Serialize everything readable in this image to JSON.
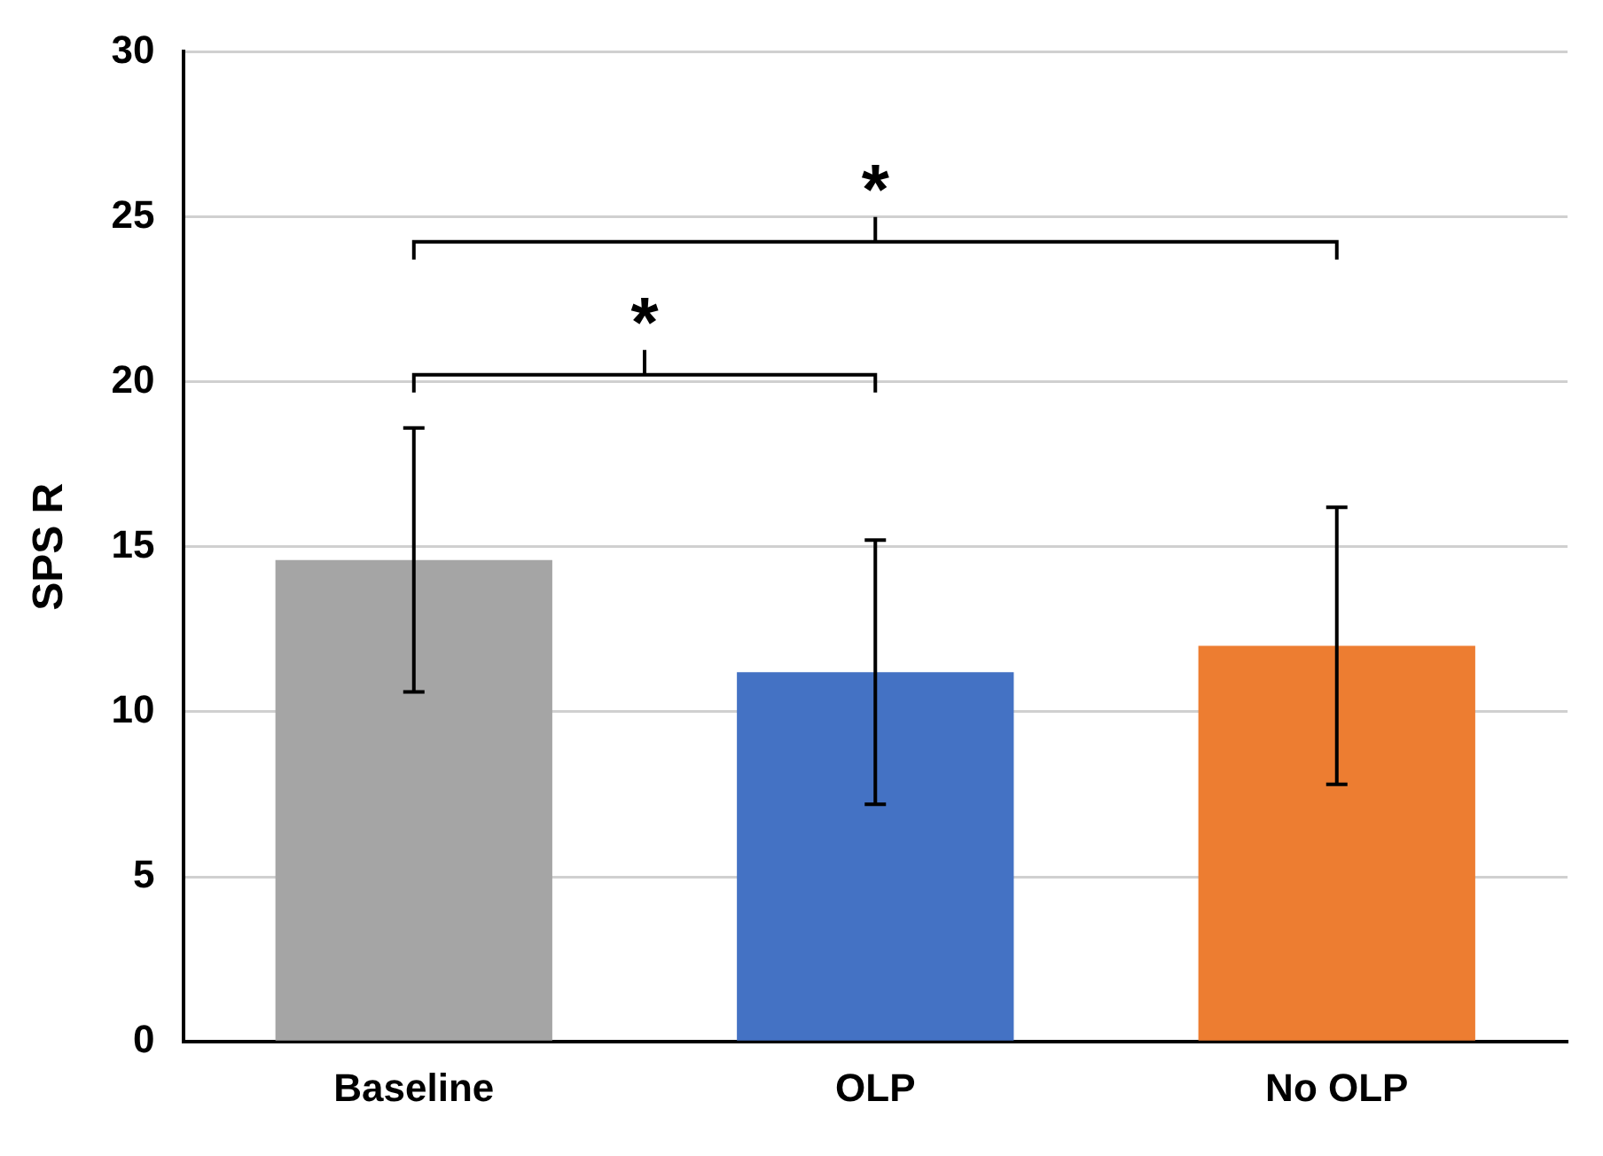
{
  "chart_data": {
    "type": "bar",
    "ylabel": "SPS R",
    "categories": [
      "Baseline",
      "OLP",
      "No OLP"
    ],
    "values": [
      14.6,
      11.2,
      12.0
    ],
    "colors": [
      "#a5a5a5",
      "#4472c4",
      "#ed7d31"
    ],
    "errors": [
      4,
      4,
      4.2
    ],
    "ylim": [
      0,
      30
    ],
    "yticks": [
      0,
      5,
      10,
      15,
      20,
      25,
      30
    ],
    "grid": "y",
    "legend": false,
    "annotations": [
      "*",
      "*"
    ]
  }
}
